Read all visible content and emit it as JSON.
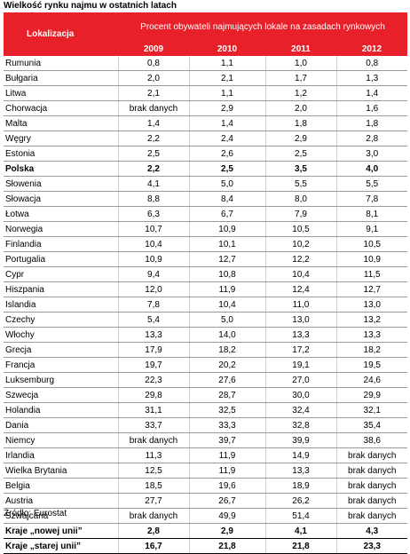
{
  "title": "Wielkość rynku najmu w ostatnich latach",
  "header": {
    "location_label": "Lokalizacja",
    "group_label": "Procent obywateli najmujących lokale na zasadach rynkowych",
    "years": [
      "2009",
      "2010",
      "2011",
      "2012"
    ]
  },
  "rows": [
    {
      "name": "Rumunia",
      "v": [
        "0,8",
        "1,1",
        "1,0",
        "0,8"
      ]
    },
    {
      "name": "Bułgaria",
      "v": [
        "2,0",
        "2,1",
        "1,7",
        "1,3"
      ]
    },
    {
      "name": "Litwa",
      "v": [
        "2,1",
        "1,1",
        "1,2",
        "1,4"
      ]
    },
    {
      "name": "Chorwacja",
      "v": [
        "brak danych",
        "2,9",
        "2,0",
        "1,6"
      ]
    },
    {
      "name": "Malta",
      "v": [
        "1,4",
        "1,4",
        "1,8",
        "1,8"
      ]
    },
    {
      "name": "Węgry",
      "v": [
        "2,2",
        "2,4",
        "2,9",
        "2,8"
      ]
    },
    {
      "name": "Estonia",
      "v": [
        "2,5",
        "2,6",
        "2,5",
        "3,0"
      ]
    },
    {
      "name": "Polska",
      "v": [
        "2,2",
        "2,5",
        "3,5",
        "4,0"
      ]
    },
    {
      "name": "Słowenia",
      "v": [
        "4,1",
        "5,0",
        "5,5",
        "5,5"
      ]
    },
    {
      "name": "Słowacja",
      "v": [
        "8,8",
        "8,4",
        "8,0",
        "7,8"
      ]
    },
    {
      "name": "Łotwa",
      "v": [
        "6,3",
        "6,7",
        "7,9",
        "8,1"
      ]
    },
    {
      "name": "Norwegia",
      "v": [
        "10,7",
        "10,9",
        "10,5",
        "9,1"
      ]
    },
    {
      "name": "Finlandia",
      "v": [
        "10,4",
        "10,1",
        "10,2",
        "10,5"
      ]
    },
    {
      "name": "Portugalia",
      "v": [
        "10,9",
        "12,7",
        "12,2",
        "10,9"
      ]
    },
    {
      "name": "Cypr",
      "v": [
        "9,4",
        "10,8",
        "10,4",
        "11,5"
      ]
    },
    {
      "name": "Hiszpania",
      "v": [
        "12,0",
        "11,9",
        "12,4",
        "12,7"
      ]
    },
    {
      "name": "Islandia",
      "v": [
        "7,8",
        "10,4",
        "11,0",
        "13,0"
      ]
    },
    {
      "name": "Czechy",
      "v": [
        "5,4",
        "5,0",
        "13,0",
        "13,2"
      ]
    },
    {
      "name": "Włochy",
      "v": [
        "13,3",
        "14,0",
        "13,3",
        "13,3"
      ]
    },
    {
      "name": "Grecja",
      "v": [
        "17,9",
        "18,2",
        "17,2",
        "18,2"
      ]
    },
    {
      "name": "Francja",
      "v": [
        "19,7",
        "20,2",
        "19,1",
        "19,5"
      ]
    },
    {
      "name": "Luksemburg",
      "v": [
        "22,3",
        "27,6",
        "27,0",
        "24,6"
      ]
    },
    {
      "name": "Szwecja",
      "v": [
        "29,8",
        "28,7",
        "30,0",
        "29,9"
      ]
    },
    {
      "name": "Holandia",
      "v": [
        "31,1",
        "32,5",
        "32,4",
        "32,1"
      ]
    },
    {
      "name": "Dania",
      "v": [
        "33,7",
        "33,3",
        "32,8",
        "35,4"
      ]
    },
    {
      "name": "Niemcy",
      "v": [
        "brak danych",
        "39,7",
        "39,9",
        "38,6"
      ]
    },
    {
      "name": "Irlandia",
      "v": [
        "11,3",
        "11,9",
        "14,9",
        "brak danych"
      ]
    },
    {
      "name": "Wielka Brytania",
      "v": [
        "12,5",
        "11,9",
        "13,3",
        "brak danych"
      ]
    },
    {
      "name": "Belgia",
      "v": [
        "18,5",
        "19,6",
        "18,9",
        "brak danych"
      ]
    },
    {
      "name": "Austria",
      "v": [
        "27,7",
        "26,7",
        "26,2",
        "brak danych"
      ]
    },
    {
      "name": "Szwajcaria",
      "v": [
        "brak danych",
        "49,9",
        "51,4",
        "brak danych"
      ]
    },
    {
      "name": "Kraje „nowej unii”",
      "v": [
        "2,8",
        "2,9",
        "4,1",
        "4,3"
      ]
    },
    {
      "name": "Kraje „starej unii”",
      "v": [
        "16,7",
        "21,8",
        "21,8",
        "23,3"
      ]
    }
  ],
  "bold_rows": [
    "Polska",
    "Kraje „nowej unii”",
    "Kraje „starej unii”"
  ],
  "source": "Źródło: Eurostat",
  "colors": {
    "header_bg": "#e8202a",
    "header_text": "#ffffff"
  }
}
